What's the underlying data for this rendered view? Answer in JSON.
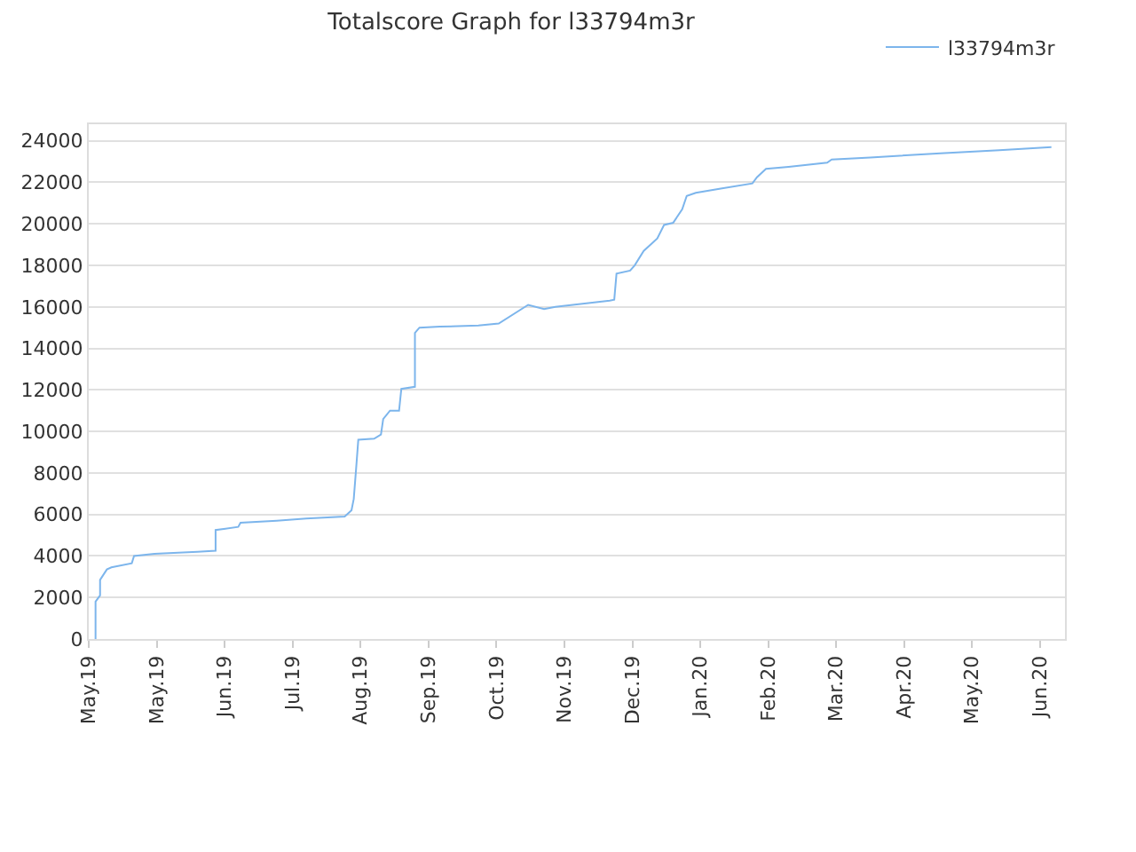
{
  "chart_data": {
    "type": "line",
    "title": "Totalscore Graph for l33794m3r",
    "x": [
      "2019-05-04",
      "2019-05-04",
      "2019-05-06",
      "2019-05-06",
      "2019-05-09",
      "2019-05-11",
      "2019-05-20",
      "2019-05-21",
      "2019-05-30",
      "2019-06-18",
      "2019-06-26",
      "2019-06-26",
      "2019-07-06",
      "2019-07-07",
      "2019-07-23",
      "2019-08-05",
      "2019-08-22",
      "2019-08-25",
      "2019-08-26",
      "2019-08-27",
      "2019-08-28",
      "2019-09-04",
      "2019-09-07",
      "2019-09-08",
      "2019-09-11",
      "2019-09-15",
      "2019-09-16",
      "2019-09-22",
      "2019-09-22",
      "2019-09-24",
      "2019-10-03",
      "2019-10-20",
      "2019-10-29",
      "2019-11-11",
      "2019-11-18",
      "2019-11-23",
      "2019-12-17",
      "2019-12-19",
      "2019-12-20",
      "2019-12-26",
      "2019-12-28",
      "2020-01-01",
      "2020-01-07",
      "2020-01-10",
      "2020-01-14",
      "2020-01-18",
      "2020-01-20",
      "2020-01-24",
      "2020-02-04",
      "2020-02-18",
      "2020-02-20",
      "2020-02-24",
      "2020-03-05",
      "2020-03-22",
      "2020-03-24",
      "2020-04-10",
      "2020-05-11",
      "2020-06-06",
      "2020-06-29"
    ],
    "series": [
      {
        "name": "l33794m3r",
        "color": "#7cb5ec",
        "values": [
          0,
          1800,
          2100,
          2850,
          3350,
          3450,
          3650,
          4000,
          4100,
          4200,
          4250,
          5250,
          5400,
          5600,
          5700,
          5800,
          5900,
          6200,
          6750,
          8150,
          9600,
          9650,
          9850,
          10600,
          11000,
          11000,
          12050,
          12150,
          14750,
          15000,
          15050,
          15100,
          15200,
          16100,
          15900,
          16000,
          16300,
          16350,
          17600,
          17750,
          18000,
          18700,
          19300,
          19950,
          20050,
          20700,
          21350,
          21500,
          21700,
          21950,
          22250,
          22650,
          22750,
          22950,
          23100,
          23200,
          23400,
          23550,
          23700
        ]
      }
    ],
    "xlim": [
      "2019-05-01",
      "2020-07-05"
    ],
    "xticks": [
      {
        "value": "2019-05-01",
        "label": "May.19"
      },
      {
        "value": "2019-05-31",
        "label": "May.19"
      },
      {
        "value": "2019-06-30",
        "label": "Jun.19"
      },
      {
        "value": "2019-07-30",
        "label": "Jul.19"
      },
      {
        "value": "2019-08-29",
        "label": "Aug.19"
      },
      {
        "value": "2019-09-28",
        "label": "Sep.19"
      },
      {
        "value": "2019-10-28",
        "label": "Oct.19"
      },
      {
        "value": "2019-11-27",
        "label": "Nov.19"
      },
      {
        "value": "2019-12-27",
        "label": "Dec.19"
      },
      {
        "value": "2020-01-26",
        "label": "Jan.20"
      },
      {
        "value": "2020-02-25",
        "label": "Feb.20"
      },
      {
        "value": "2020-03-26",
        "label": "Mar.20"
      },
      {
        "value": "2020-04-25",
        "label": "Apr.20"
      },
      {
        "value": "2020-05-25",
        "label": "May.20"
      },
      {
        "value": "2020-06-24",
        "label": "Jun.20"
      }
    ],
    "ylim": [
      0,
      24800
    ],
    "yticks": [
      0,
      2000,
      4000,
      6000,
      8000,
      10000,
      12000,
      14000,
      16000,
      18000,
      20000,
      22000,
      24000
    ],
    "grid": "y",
    "legend": "top right",
    "marker": "none",
    "line_style": "solid"
  }
}
